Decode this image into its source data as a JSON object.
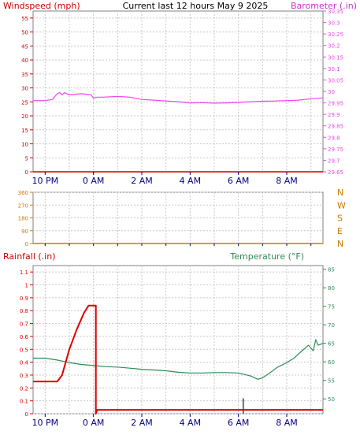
{
  "header": {
    "left_axis_title": "Windspeed (mph)",
    "center_title": "Current last 12 hours May 9 2025",
    "right_axis_title": "Barometer (.in)"
  },
  "colors": {
    "background": "#ffffff",
    "grid": "#c8c8c8",
    "axis": "#808080",
    "windspeed": "#cc0000",
    "barometer": "#ee44ee",
    "direction": "#cc7a00",
    "rainfall": "#dd0000",
    "temperature": "#2e8b57",
    "time_labels": "#000080"
  },
  "chart_data": [
    {
      "type": "line",
      "name": "windspeed-barometer",
      "title": "Current last 12 hours May 9 2025",
      "x_ticks": [
        "10 PM",
        "0 AM",
        "2 AM",
        "4 AM",
        "6 AM",
        "8 AM"
      ],
      "x_tick_hours": [
        -2,
        0,
        2,
        4,
        6,
        8
      ],
      "x_range_hours": [
        -2.5,
        9.5
      ],
      "left_axis": {
        "label": "Windspeed (mph)",
        "range": [
          0,
          57.5
        ],
        "ticks": [
          "0",
          "5",
          "10",
          "15",
          "20",
          "25",
          "30",
          "35",
          "40",
          "45",
          "50",
          "55"
        ],
        "tick_values": [
          0,
          5,
          10,
          15,
          20,
          25,
          30,
          35,
          40,
          45,
          50,
          55
        ]
      },
      "right_axis": {
        "label": "Barometer (.in)",
        "range": [
          29.65,
          30.35
        ],
        "ticks": [
          "29.65",
          "29.7",
          "29.75",
          "29.8",
          "29.85",
          "29.9",
          "29.95",
          "30",
          "30.05",
          "30.1",
          "30.15",
          "30.2",
          "30.25",
          "30.3",
          "30.35"
        ],
        "tick_values": [
          29.65,
          29.7,
          29.75,
          29.8,
          29.85,
          29.9,
          29.95,
          30.0,
          30.05,
          30.1,
          30.15,
          30.2,
          30.25,
          30.3,
          30.35
        ]
      },
      "series": [
        {
          "axis": "right",
          "x": [
            -2.5,
            -2.0,
            -1.7,
            -1.5,
            -1.4,
            -1.3,
            -1.2,
            -1.0,
            -0.5,
            -0.1,
            0.0,
            0.15,
            0.4,
            1.0,
            1.5,
            2.0,
            2.5,
            3.0,
            3.5,
            4.0,
            4.5,
            5.0,
            5.5,
            6.0,
            6.5,
            7.0,
            7.5,
            8.0,
            8.5,
            9.0,
            9.5
          ],
          "y": [
            29.96,
            29.96,
            29.965,
            29.99,
            29.995,
            29.985,
            29.995,
            29.985,
            29.99,
            29.985,
            29.97,
            29.975,
            29.975,
            29.978,
            29.975,
            29.965,
            29.962,
            29.958,
            29.955,
            29.95,
            29.951,
            29.949,
            29.95,
            29.952,
            29.955,
            29.957,
            29.958,
            29.96,
            29.962,
            29.968,
            29.972
          ]
        },
        {
          "axis": "left",
          "x": [
            -2.5,
            9.5
          ],
          "y": [
            0,
            0
          ]
        }
      ]
    },
    {
      "type": "line",
      "name": "wind-direction",
      "x_ticks": [],
      "left_axis": {
        "range": [
          0,
          360
        ],
        "ticks": [
          "0",
          "90",
          "180",
          "270",
          "360"
        ],
        "tick_values": [
          0,
          90,
          180,
          270,
          360
        ]
      },
      "right_labels": [
        "N",
        "W",
        "S",
        "E",
        "N"
      ],
      "series": [
        {
          "axis": "left",
          "x": [
            -2.5,
            9.5
          ],
          "y": [
            0,
            0
          ]
        }
      ]
    },
    {
      "type": "line",
      "name": "rainfall-temperature",
      "x_ticks": [
        "10 PM",
        "0 AM",
        "2 AM",
        "4 AM",
        "6 AM",
        "8 AM"
      ],
      "x_tick_hours": [
        -2,
        0,
        2,
        4,
        6,
        8
      ],
      "left_axis": {
        "label": "Rainfall (.in)",
        "range": [
          0,
          1.15
        ],
        "ticks": [
          "0",
          "0.1",
          "0.2",
          "0.3",
          "0.4",
          "0.5",
          "0.6",
          "0.7",
          "0.8",
          "0.9",
          "1",
          "1.1"
        ],
        "tick_values": [
          0,
          0.1,
          0.2,
          0.3,
          0.4,
          0.5,
          0.6,
          0.7,
          0.8,
          0.9,
          1.0,
          1.1
        ]
      },
      "right_axis": {
        "label": "Temperature (°F)",
        "range": [
          46,
          86
        ],
        "ticks": [
          "50",
          "55",
          "60",
          "65",
          "70",
          "75",
          "80",
          "85"
        ],
        "tick_values": [
          50,
          55,
          60,
          65,
          70,
          75,
          80,
          85
        ]
      },
      "series": [
        {
          "axis": "left",
          "x": [
            -2.5,
            -1.5,
            -1.3,
            -1.0,
            -0.7,
            -0.4,
            -0.2,
            0.1,
            0.1,
            0.15,
            0.3,
            9.5
          ],
          "y": [
            0.25,
            0.25,
            0.3,
            0.5,
            0.65,
            0.78,
            0.84,
            0.84,
            0.0,
            0.03,
            0.03,
            0.03
          ]
        },
        {
          "axis": "right",
          "x": [
            -2.5,
            -2.0,
            -1.5,
            -1.0,
            -0.5,
            0.0,
            0.5,
            1.0,
            1.5,
            2.0,
            2.5,
            3.0,
            3.5,
            4.0,
            4.5,
            5.0,
            5.5,
            6.0,
            6.5,
            6.8,
            7.0,
            7.3,
            7.6,
            8.0,
            8.3,
            8.6,
            8.9,
            9.1,
            9.2,
            9.3,
            9.5
          ],
          "y": [
            61,
            61,
            60.5,
            59.8,
            59.3,
            59,
            58.7,
            58.6,
            58.3,
            58,
            57.8,
            57.6,
            57.2,
            57.0,
            57.0,
            57.1,
            57.1,
            57.0,
            56.2,
            55.3,
            55.7,
            57.0,
            58.5,
            59.8,
            61.0,
            62.8,
            64.5,
            63.0,
            66.0,
            64.5,
            65.0
          ]
        }
      ],
      "marker": {
        "x": 6.2,
        "y_from": 0,
        "y_to": 0.12
      }
    }
  ]
}
